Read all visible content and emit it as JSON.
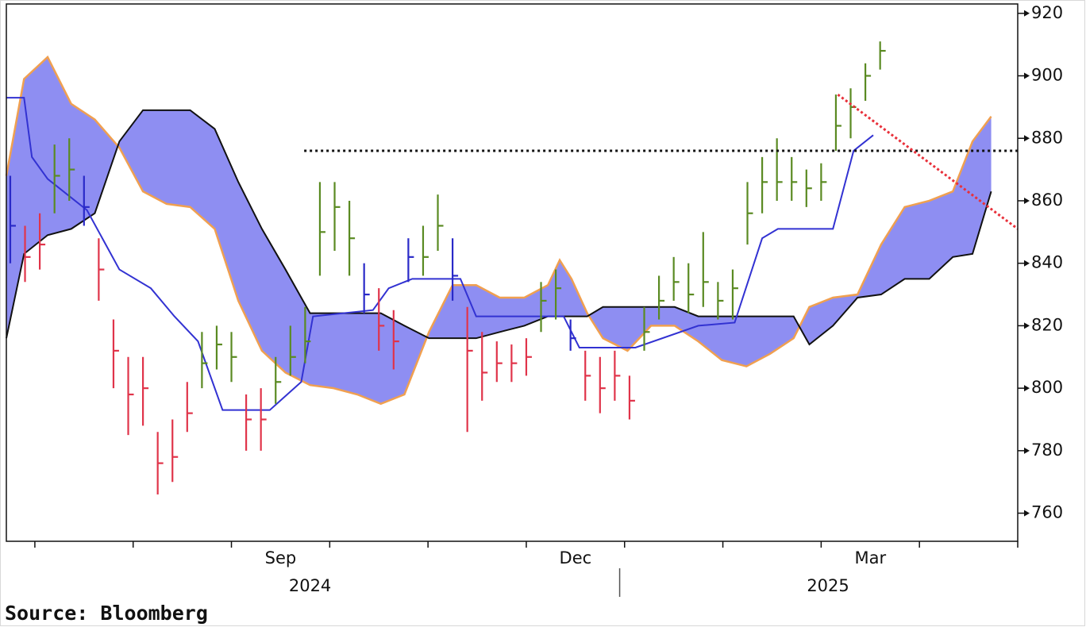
{
  "chart_data": {
    "type": "ichimoku",
    "source": "Source: Bloomberg",
    "x": [
      -0.25,
      -0.1,
      0.05,
      0.2,
      0.35,
      0.5,
      0.65,
      0.8,
      0.95,
      1.1,
      1.25,
      1.4,
      1.55,
      1.7,
      1.85,
      2,
      2.15,
      2.3,
      2.45,
      2.6,
      2.75,
      2.9,
      3.05,
      3.2,
      3.35,
      3.5,
      3.65,
      3.8,
      3.95,
      4.1,
      4.25,
      4.4,
      4.55,
      4.7,
      4.85,
      5,
      5.15,
      5.3,
      5.45,
      5.6,
      5.75,
      5.9,
      6.05,
      6.2,
      6.35,
      6.5,
      6.65,
      6.8,
      6.95,
      7.1,
      7.25,
      7.4,
      7.55,
      7.7,
      7.85,
      8,
      8.15,
      8.3,
      8.45,
      8.6
    ],
    "high": [
      868,
      852,
      856,
      878,
      880,
      868,
      848,
      822,
      810,
      810,
      786,
      790,
      802,
      818,
      820,
      818,
      798,
      800,
      810,
      820,
      826,
      866,
      866,
      860,
      840,
      832,
      825,
      848,
      852,
      862,
      848,
      826,
      818,
      815,
      814,
      816,
      834,
      838,
      822,
      812,
      810,
      812,
      804,
      826,
      836,
      842,
      840,
      850,
      834,
      838,
      866,
      874,
      880,
      874,
      870,
      872,
      894,
      896,
      904,
      911
    ],
    "low": [
      840,
      834,
      838,
      856,
      860,
      852,
      828,
      800,
      785,
      788,
      766,
      770,
      786,
      800,
      806,
      802,
      780,
      780,
      795,
      804,
      808,
      836,
      844,
      836,
      824,
      812,
      806,
      834,
      836,
      844,
      828,
      786,
      796,
      802,
      802,
      804,
      818,
      822,
      812,
      796,
      792,
      796,
      790,
      812,
      822,
      828,
      824,
      826,
      822,
      822,
      846,
      856,
      860,
      860,
      858,
      860,
      876,
      880,
      892,
      902
    ],
    "close": [
      852,
      842,
      846,
      868,
      870,
      858,
      838,
      812,
      798,
      800,
      776,
      778,
      792,
      808,
      814,
      810,
      790,
      790,
      802,
      810,
      815,
      850,
      858,
      848,
      830,
      820,
      815,
      842,
      842,
      852,
      836,
      812,
      805,
      808,
      808,
      810,
      828,
      832,
      816,
      804,
      800,
      804,
      796,
      818,
      828,
      834,
      830,
      834,
      828,
      832,
      856,
      866,
      866,
      866,
      864,
      866,
      884,
      890,
      900,
      908
    ],
    "bar_colors": [
      "#2a2ac8",
      "#e0344a",
      "#e0344a",
      "#5a8a22",
      "#5a8a22",
      "#2a2ac8",
      "#e0344a",
      "#e0344a",
      "#e0344a",
      "#e0344a",
      "#e0344a",
      "#e0344a",
      "#e0344a",
      "#5a8a22",
      "#5a8a22",
      "#5a8a22",
      "#e0344a",
      "#e0344a",
      "#5a8a22",
      "#5a8a22",
      "#5a8a22",
      "#5a8a22",
      "#5a8a22",
      "#5a8a22",
      "#2a2ac8",
      "#e0344a",
      "#e0344a",
      "#2a2ac8",
      "#5a8a22",
      "#5a8a22",
      "#2a2ac8",
      "#e0344a",
      "#e0344a",
      "#e0344a",
      "#e0344a",
      "#e0344a",
      "#5a8a22",
      "#5a8a22",
      "#2a2ac8",
      "#e0344a",
      "#e0344a",
      "#e0344a",
      "#e0344a",
      "#5a8a22",
      "#5a8a22",
      "#5a8a22",
      "#5a8a22",
      "#5a8a22",
      "#5a8a22",
      "#5a8a22",
      "#5a8a22",
      "#5a8a22",
      "#5a8a22",
      "#5a8a22",
      "#5a8a22",
      "#5a8a22",
      "#5a8a22",
      "#5a8a22",
      "#5a8a22",
      "#5a8a22"
    ],
    "base_line": {
      "color": "#3232d2",
      "x": [
        -0.29,
        -0.11,
        -0.03,
        0.13,
        0.53,
        0.86,
        1.18,
        1.42,
        1.66,
        1.91,
        2.39,
        2.71,
        2.83,
        3.44,
        3.6,
        3.84,
        4.33,
        4.49,
        5.38,
        5.54,
        6.11,
        6.75,
        7.12,
        7.4,
        7.56,
        8.12,
        8.33,
        8.53
      ],
      "values": [
        893,
        893,
        874,
        867,
        857,
        838,
        832,
        823,
        815,
        793,
        793,
        802,
        823,
        825,
        832,
        835,
        835,
        823,
        823,
        813,
        813,
        820,
        821,
        848,
        851,
        851,
        876,
        881
      ]
    },
    "span_a": {
      "color": "#f0a050",
      "x": [
        -0.29,
        -0.11,
        0.13,
        0.37,
        0.61,
        0.86,
        1.1,
        1.34,
        1.58,
        1.83,
        2.07,
        2.31,
        2.55,
        2.8,
        3.04,
        3.28,
        3.52,
        3.76,
        4.01,
        4.25,
        4.49,
        4.73,
        4.98,
        5.22,
        5.34,
        5.46,
        5.62,
        5.78,
        6.03,
        6.27,
        6.51,
        6.75,
        6.99,
        7.24,
        7.48,
        7.72,
        7.88,
        8.12,
        8.37,
        8.61,
        8.85,
        9.1,
        9.34,
        9.54,
        9.73
      ],
      "values": [
        868,
        899,
        906,
        891,
        886,
        877,
        863,
        859,
        858,
        851,
        828,
        812,
        805,
        801,
        800,
        798,
        795,
        798,
        818,
        833,
        833,
        829,
        829,
        833,
        841,
        835,
        824,
        816,
        812,
        820,
        820,
        815,
        809,
        807,
        811,
        816,
        826,
        829,
        830,
        846,
        858,
        860,
        863,
        879,
        887
      ]
    },
    "span_b": {
      "color": "#111111",
      "x": [
        -0.29,
        -0.11,
        0.13,
        0.37,
        0.61,
        0.86,
        1.1,
        1.34,
        1.58,
        1.83,
        2.07,
        2.31,
        2.55,
        2.8,
        3.04,
        3.28,
        3.52,
        3.76,
        4.01,
        4.25,
        4.49,
        4.73,
        4.98,
        5.22,
        5.34,
        5.46,
        5.62,
        5.78,
        6.03,
        6.27,
        6.51,
        6.75,
        6.99,
        7.24,
        7.48,
        7.72,
        7.88,
        8.12,
        8.37,
        8.61,
        8.85,
        9.1,
        9.34,
        9.54,
        9.73
      ],
      "values": [
        816,
        843,
        849,
        851,
        856,
        879,
        889,
        889,
        889,
        883,
        866,
        851,
        838,
        824,
        824,
        824,
        824,
        820,
        816,
        816,
        816,
        818,
        820,
        823,
        823,
        823,
        823,
        826,
        826,
        826,
        826,
        823,
        823,
        823,
        823,
        823,
        814,
        820,
        829,
        830,
        835,
        835,
        842,
        843,
        863
      ]
    },
    "cloud_color": "#8e8ef2",
    "level_line": {
      "value": 876,
      "from": 2.74,
      "color": "#111111"
    },
    "trend_line": {
      "x": [
        8.17,
        10
      ],
      "values": [
        894,
        851
      ],
      "color": "#e8303a"
    },
    "xlim": [
      -0.29,
      10
    ],
    "ylim": [
      751,
      923
    ],
    "yticks": [
      760,
      780,
      800,
      820,
      840,
      860,
      880,
      900,
      920
    ],
    "minor_xticks": [
      0,
      1,
      2,
      3,
      4,
      5,
      6,
      7,
      8,
      9,
      10
    ],
    "xticks": [
      {
        "value": 2.5,
        "label": "Sep"
      },
      {
        "value": 5.5,
        "label": "Dec"
      },
      {
        "value": 8.5,
        "label": "Mar"
      }
    ],
    "year_labels": [
      {
        "value": 2.8,
        "label": "2024"
      },
      {
        "value": 8.07,
        "label": "2025"
      }
    ],
    "year_divider": 5.95
  }
}
